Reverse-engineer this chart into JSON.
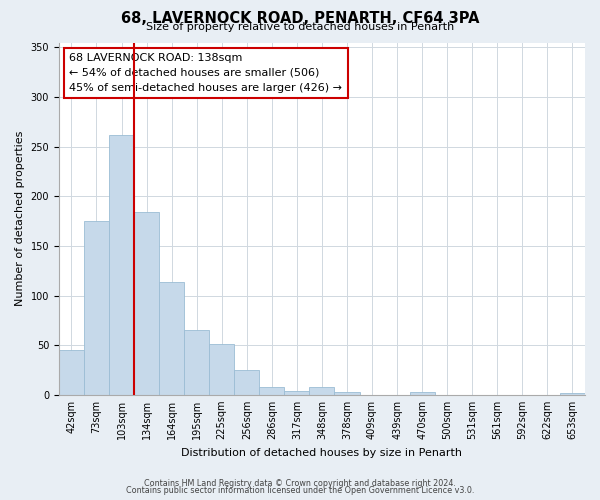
{
  "title": "68, LAVERNOCK ROAD, PENARTH, CF64 3PA",
  "subtitle": "Size of property relative to detached houses in Penarth",
  "xlabel": "Distribution of detached houses by size in Penarth",
  "ylabel": "Number of detached properties",
  "bar_labels": [
    "42sqm",
    "73sqm",
    "103sqm",
    "134sqm",
    "164sqm",
    "195sqm",
    "225sqm",
    "256sqm",
    "286sqm",
    "317sqm",
    "348sqm",
    "378sqm",
    "409sqm",
    "439sqm",
    "470sqm",
    "500sqm",
    "531sqm",
    "561sqm",
    "592sqm",
    "622sqm",
    "653sqm"
  ],
  "bar_values": [
    45,
    175,
    262,
    184,
    114,
    65,
    51,
    25,
    8,
    4,
    8,
    3,
    0,
    0,
    3,
    0,
    0,
    0,
    0,
    0,
    2
  ],
  "bar_color": "#c6d9ea",
  "bar_edge_color": "#9bbdd4",
  "property_line_color": "#cc0000",
  "ylim": [
    0,
    355
  ],
  "yticks": [
    0,
    50,
    100,
    150,
    200,
    250,
    300,
    350
  ],
  "annotation_title": "68 LAVERNOCK ROAD: 138sqm",
  "annotation_line1": "← 54% of detached houses are smaller (506)",
  "annotation_line2": "45% of semi-detached houses are larger (426) →",
  "annotation_box_color": "#ffffff",
  "annotation_box_edge": "#cc0000",
  "footer_line1": "Contains HM Land Registry data © Crown copyright and database right 2024.",
  "footer_line2": "Contains public sector information licensed under the Open Government Licence v3.0.",
  "background_color": "#e8eef4",
  "plot_background": "#ffffff",
  "grid_color": "#d0d8e0"
}
